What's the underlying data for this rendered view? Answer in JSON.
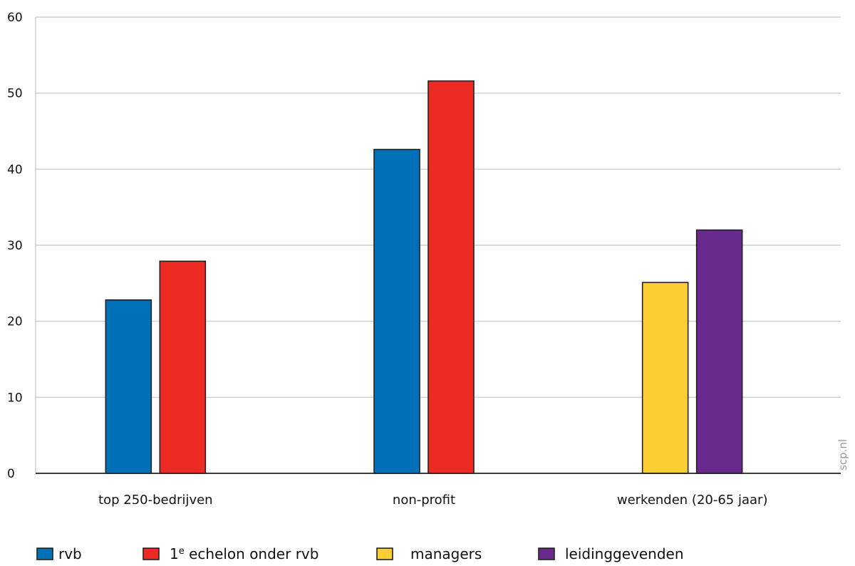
{
  "chart_data": {
    "type": "bar",
    "categories": [
      "top 250-bedrijven",
      "non-profit",
      "werkenden (20-65 jaar)"
    ],
    "ylim": [
      0,
      60
    ],
    "yticks": [
      "0",
      "10",
      "20",
      "30",
      "40",
      "50",
      "60"
    ],
    "grid": true,
    "legend_position": "bottom",
    "series": [
      {
        "name": "rvb",
        "color": "#0070b8",
        "values": [
          22.8,
          42.6,
          null
        ]
      },
      {
        "name": "1e echelon onder rvb",
        "color": "#ee2a24",
        "values": [
          27.9,
          51.6,
          null
        ]
      },
      {
        "name": "managers",
        "color": "#fdcd34",
        "values": [
          null,
          null,
          25.1
        ]
      },
      {
        "name": "leidinggevenden",
        "color": "#682a8c",
        "values": [
          null,
          null,
          32.0
        ]
      }
    ],
    "legend": [
      {
        "label": "rvb",
        "color": "#0070b8"
      },
      {
        "label_main": "1",
        "label_sup": "e",
        "label_rest": " echelon onder rvb",
        "color": "#ee2a24"
      },
      {
        "label": "managers",
        "color": "#fdcd34"
      },
      {
        "label": "leidinggevenden",
        "color": "#682a8c"
      }
    ],
    "watermark": "scp.nl"
  }
}
